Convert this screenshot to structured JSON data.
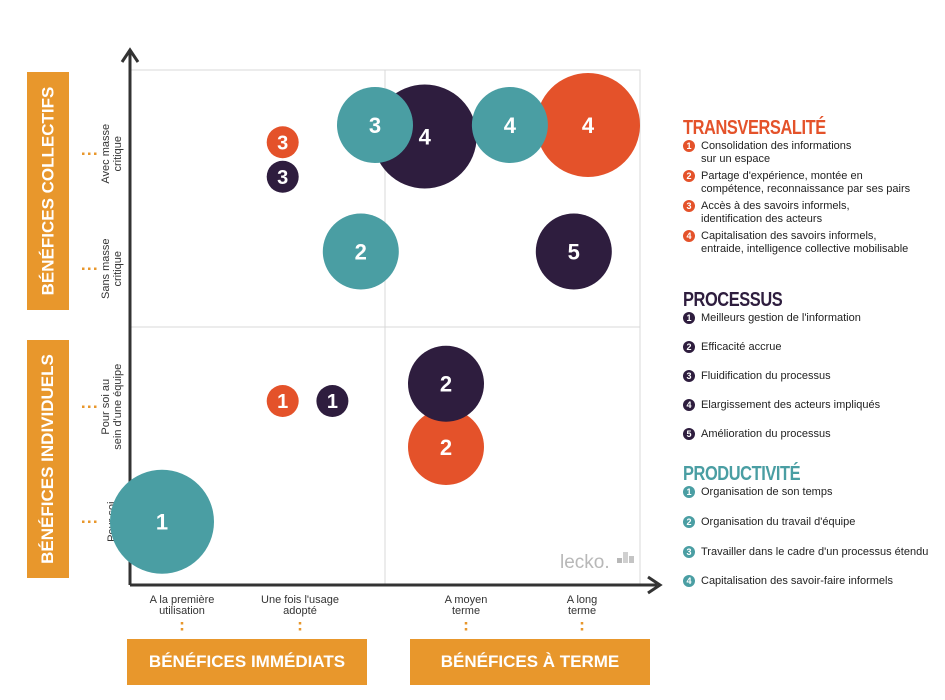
{
  "colors": {
    "orange": "#e8972c",
    "transversalite": "#e4522a",
    "processus": "#2e1d3e",
    "productivite": "#4a9ea3",
    "axis": "#333333",
    "grid": "#d8d8d8"
  },
  "left_labels": {
    "collectifs": "BÉNÉFICES COLLECTIFS",
    "individuels": "BÉNÉFICES INDIVIDUELS"
  },
  "bottom_labels": {
    "immediats": "BÉNÉFICES IMMÉDIATS",
    "terme": "BÉNÉFICES À TERME"
  },
  "y_ticks": [
    "Avec masse\ncritique",
    "Sans masse\ncritique",
    "Pour soi au\nsein d'une équipe",
    "Pour soi"
  ],
  "x_ticks": [
    "A la première\nutilisation",
    "Une fois l'usage\nadopté",
    "A moyen\nterme",
    "A long\nterme"
  ],
  "watermark": "lecko.",
  "chart_data": {
    "type": "scatter",
    "title": "",
    "xlabel": "",
    "ylabel": "",
    "x_categories": [
      "A la première utilisation",
      "Une fois l'usage adopté",
      "A moyen terme",
      "A long terme"
    ],
    "y_categories": [
      "Pour soi",
      "Pour soi au sein d'une équipe",
      "Sans masse critique",
      "Avec masse critique"
    ],
    "series": [
      {
        "name": "TRANSVERSALITÉ",
        "points": [
          {
            "label": "3",
            "x": 1.85,
            "y": 3.85,
            "size": 1
          },
          {
            "label": "4",
            "x": 4.0,
            "y": 4.0,
            "size": 3
          },
          {
            "label": "1",
            "x": 1.85,
            "y": 1.6,
            "size": 1
          },
          {
            "label": "2",
            "x": 3.0,
            "y": 1.2,
            "size": 2
          }
        ]
      },
      {
        "name": "PROCESSUS",
        "points": [
          {
            "label": "3",
            "x": 1.85,
            "y": 3.55,
            "size": 1
          },
          {
            "label": "4",
            "x": 2.85,
            "y": 3.9,
            "size": 3
          },
          {
            "label": "5",
            "x": 3.9,
            "y": 2.9,
            "size": 2
          },
          {
            "label": "1",
            "x": 2.2,
            "y": 1.6,
            "size": 1
          },
          {
            "label": "2",
            "x": 3.0,
            "y": 1.75,
            "size": 2
          }
        ]
      },
      {
        "name": "PRODUCTIVITÉ",
        "points": [
          {
            "label": "3",
            "x": 2.5,
            "y": 4.0,
            "size": 2
          },
          {
            "label": "4",
            "x": 3.45,
            "y": 4.0,
            "size": 2
          },
          {
            "label": "2",
            "x": 2.4,
            "y": 2.9,
            "size": 2
          },
          {
            "label": "1",
            "x": 1.0,
            "y": 0.55,
            "size": 3
          }
        ]
      }
    ]
  },
  "legend": {
    "transversalite": {
      "title": "TRANSVERSALITÉ",
      "items": [
        {
          "num": "1",
          "text": "Consolidation des informations\nsur un espace"
        },
        {
          "num": "2",
          "text": "Partage d'expérience, montée en\ncompétence, reconnaissance par ses pairs"
        },
        {
          "num": "3",
          "text": "Accès à des savoirs informels,\nidentification des acteurs"
        },
        {
          "num": "4",
          "text": "Capitalisation des savoirs informels,\nentraide, intelligence collective mobilisable"
        }
      ]
    },
    "processus": {
      "title": "PROCESSUS",
      "items": [
        {
          "num": "1",
          "text": "Meilleurs gestion de l'information"
        },
        {
          "num": "2",
          "text": "Efficacité accrue"
        },
        {
          "num": "3",
          "text": "Fluidification du processus"
        },
        {
          "num": "4",
          "text": "Elargissement des acteurs impliqués"
        },
        {
          "num": "5",
          "text": "Amélioration du processus"
        }
      ]
    },
    "productivite": {
      "title": "PRODUCTIVITÉ",
      "items": [
        {
          "num": "1",
          "text": "Organisation de son temps"
        },
        {
          "num": "2",
          "text": "Organisation du travail d'équipe"
        },
        {
          "num": "3",
          "text": "Travailler dans le cadre d'un processus étendu"
        },
        {
          "num": "4",
          "text": "Capitalisation des savoir-faire informels"
        }
      ]
    }
  }
}
